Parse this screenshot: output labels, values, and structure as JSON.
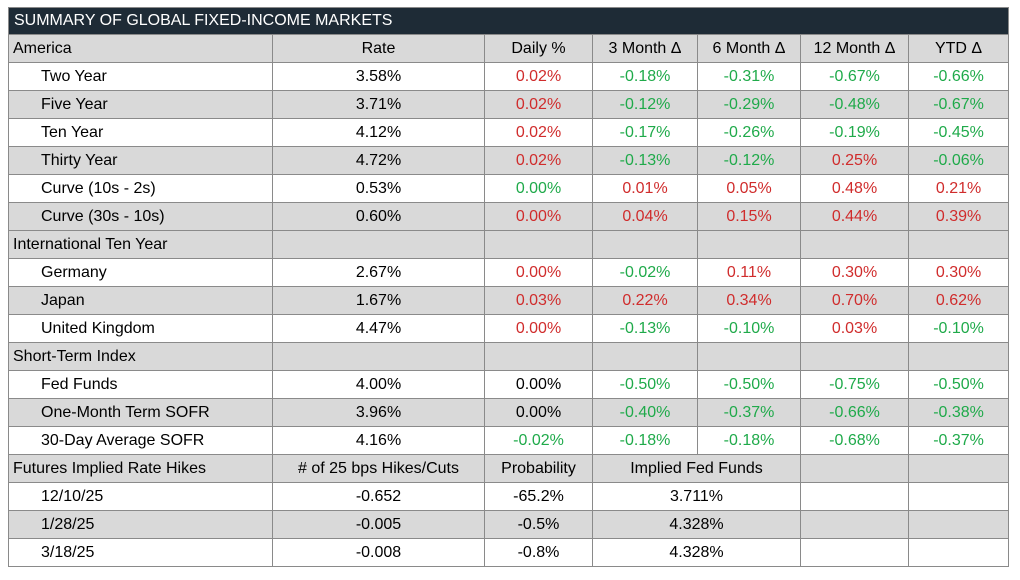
{
  "title": "SUMMARY OF GLOBAL FIXED-INCOME MARKETS",
  "sections": [
    {
      "header": [
        "America",
        "Rate",
        "Daily %",
        "3 Month Δ",
        "6 Month Δ",
        "12 Month Δ",
        "YTD Δ"
      ],
      "rows": [
        {
          "label": "Two Year",
          "cells": [
            "3.58%",
            "0.02%",
            "-0.18%",
            "-0.31%",
            "-0.67%",
            "-0.66%"
          ],
          "colors": [
            "#000000",
            "#d02c2c",
            "#1faa4a",
            "#1faa4a",
            "#1faa4a",
            "#1faa4a"
          ]
        },
        {
          "label": "Five Year",
          "cells": [
            "3.71%",
            "0.02%",
            "-0.12%",
            "-0.29%",
            "-0.48%",
            "-0.67%"
          ],
          "colors": [
            "#000000",
            "#d02c2c",
            "#1faa4a",
            "#1faa4a",
            "#1faa4a",
            "#1faa4a"
          ]
        },
        {
          "label": "Ten Year",
          "cells": [
            "4.12%",
            "0.02%",
            "-0.17%",
            "-0.26%",
            "-0.19%",
            "-0.45%"
          ],
          "colors": [
            "#000000",
            "#d02c2c",
            "#1faa4a",
            "#1faa4a",
            "#1faa4a",
            "#1faa4a"
          ]
        },
        {
          "label": "Thirty Year",
          "cells": [
            "4.72%",
            "0.02%",
            "-0.13%",
            "-0.12%",
            "0.25%",
            "-0.06%"
          ],
          "colors": [
            "#000000",
            "#d02c2c",
            "#1faa4a",
            "#1faa4a",
            "#d02c2c",
            "#1faa4a"
          ]
        },
        {
          "label": "Curve (10s - 2s)",
          "cells": [
            "0.53%",
            "0.00%",
            "0.01%",
            "0.05%",
            "0.48%",
            "0.21%"
          ],
          "colors": [
            "#000000",
            "#1faa4a",
            "#d02c2c",
            "#d02c2c",
            "#d02c2c",
            "#d02c2c"
          ]
        },
        {
          "label": "Curve (30s - 10s)",
          "cells": [
            "0.60%",
            "0.00%",
            "0.04%",
            "0.15%",
            "0.44%",
            "0.39%"
          ],
          "colors": [
            "#000000",
            "#d02c2c",
            "#d02c2c",
            "#d02c2c",
            "#d02c2c",
            "#d02c2c"
          ]
        }
      ]
    },
    {
      "header": [
        "International Ten Year"
      ],
      "rows": [
        {
          "label": "Germany",
          "cells": [
            "2.67%",
            "0.00%",
            "-0.02%",
            "0.11%",
            "0.30%",
            "0.30%"
          ],
          "colors": [
            "#000000",
            "#d02c2c",
            "#1faa4a",
            "#d02c2c",
            "#d02c2c",
            "#d02c2c"
          ]
        },
        {
          "label": "Japan",
          "cells": [
            "1.67%",
            "0.03%",
            "0.22%",
            "0.34%",
            "0.70%",
            "0.62%"
          ],
          "colors": [
            "#000000",
            "#d02c2c",
            "#d02c2c",
            "#d02c2c",
            "#d02c2c",
            "#d02c2c"
          ]
        },
        {
          "label": "United Kingdom",
          "cells": [
            "4.47%",
            "0.00%",
            "-0.13%",
            "-0.10%",
            "0.03%",
            "-0.10%"
          ],
          "colors": [
            "#000000",
            "#d02c2c",
            "#1faa4a",
            "#1faa4a",
            "#d02c2c",
            "#1faa4a"
          ]
        }
      ]
    },
    {
      "header": [
        "Short-Term Index"
      ],
      "rows": [
        {
          "label": "Fed Funds",
          "cells": [
            "4.00%",
            "0.00%",
            "-0.50%",
            "-0.50%",
            "-0.75%",
            "-0.50%"
          ],
          "colors": [
            "#000000",
            "#000000",
            "#1faa4a",
            "#1faa4a",
            "#1faa4a",
            "#1faa4a"
          ]
        },
        {
          "label": "One-Month Term SOFR",
          "cells": [
            "3.96%",
            "0.00%",
            "-0.40%",
            "-0.37%",
            "-0.66%",
            "-0.38%"
          ],
          "colors": [
            "#000000",
            "#000000",
            "#1faa4a",
            "#1faa4a",
            "#1faa4a",
            "#1faa4a"
          ]
        },
        {
          "label": "30-Day Average SOFR",
          "cells": [
            "4.16%",
            "-0.02%",
            "-0.18%",
            "-0.18%",
            "-0.68%",
            "-0.37%"
          ],
          "colors": [
            "#000000",
            "#1faa4a",
            "#1faa4a",
            "#1faa4a",
            "#1faa4a",
            "#1faa4a"
          ]
        }
      ]
    },
    {
      "header": [
        "Futures Implied Rate Hikes",
        "# of 25 bps Hikes/Cuts",
        "Probability",
        "Implied Fed Funds"
      ],
      "rows": [
        {
          "label": "12/10/25",
          "cells": [
            "-0.652",
            "-65.2%",
            "3.711%"
          ]
        },
        {
          "label": "1/28/25",
          "cells": [
            "-0.005",
            "-0.5%",
            "4.328%"
          ]
        },
        {
          "label": "3/18/25",
          "cells": [
            "-0.008",
            "-0.8%",
            "4.328%"
          ]
        }
      ]
    }
  ]
}
